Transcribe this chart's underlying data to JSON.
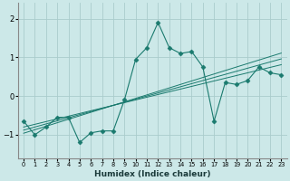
{
  "xlabel": "Humidex (Indice chaleur)",
  "background_color": "#cce8e8",
  "grid_color": "#aacccc",
  "line_color": "#1a7a6e",
  "x_data": [
    0,
    1,
    2,
    3,
    4,
    5,
    6,
    7,
    8,
    9,
    10,
    11,
    12,
    13,
    14,
    15,
    16,
    17,
    18,
    19,
    20,
    21,
    22,
    23
  ],
  "y_main": [
    -0.65,
    -1.0,
    -0.8,
    -0.55,
    -0.55,
    -1.2,
    -0.95,
    -0.9,
    -0.9,
    -0.1,
    0.95,
    1.25,
    1.9,
    1.25,
    1.1,
    1.15,
    0.75,
    -0.65,
    0.35,
    0.3,
    0.4,
    0.75,
    0.6,
    0.55
  ],
  "y_reg1": [
    -0.88,
    -0.8,
    -0.72,
    -0.64,
    -0.56,
    -0.48,
    -0.4,
    -0.32,
    -0.24,
    -0.16,
    -0.08,
    0.0,
    0.08,
    0.16,
    0.24,
    0.32,
    0.4,
    0.48,
    0.56,
    0.64,
    0.72,
    0.8,
    0.88,
    0.96
  ],
  "y_reg2": [
    -0.96,
    -0.87,
    -0.78,
    -0.69,
    -0.6,
    -0.51,
    -0.42,
    -0.33,
    -0.24,
    -0.15,
    -0.06,
    0.03,
    0.12,
    0.21,
    0.3,
    0.39,
    0.48,
    0.57,
    0.66,
    0.75,
    0.84,
    0.93,
    1.02,
    1.11
  ],
  "y_reg3": [
    -0.8,
    -0.73,
    -0.66,
    -0.59,
    -0.52,
    -0.45,
    -0.38,
    -0.31,
    -0.24,
    -0.17,
    -0.1,
    -0.03,
    0.04,
    0.11,
    0.18,
    0.25,
    0.32,
    0.39,
    0.46,
    0.53,
    0.6,
    0.67,
    0.74,
    0.81
  ],
  "xlim": [
    -0.5,
    23.5
  ],
  "ylim": [
    -1.6,
    2.4
  ],
  "yticks": [
    -1,
    0,
    1,
    2
  ],
  "xticks": [
    0,
    1,
    2,
    3,
    4,
    5,
    6,
    7,
    8,
    9,
    10,
    11,
    12,
    13,
    14,
    15,
    16,
    17,
    18,
    19,
    20,
    21,
    22,
    23
  ],
  "xlabel_fontsize": 6.5,
  "xlabel_fontweight": "bold",
  "xlabel_color": "#1a3a3a",
  "ytick_fontsize": 6,
  "xtick_fontsize": 4.8
}
